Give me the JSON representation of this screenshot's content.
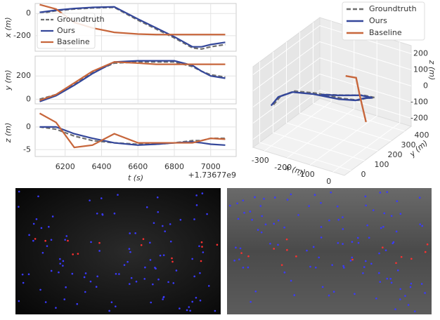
{
  "chart_data": [
    {
      "type": "line",
      "ylabel": "x (m)",
      "xlim": [
        6035,
        7140
      ],
      "xticks": [
        6200,
        6400,
        6600,
        6800,
        7000
      ],
      "ylim": [
        -340,
        90
      ],
      "yticks": [
        -200,
        0
      ],
      "grid": true,
      "legend": "center left",
      "x": [
        6060,
        6150,
        6250,
        6350,
        6470,
        6600,
        6700,
        6800,
        6900,
        6950,
        7000,
        7080
      ],
      "series": [
        {
          "name": "Groundtruth",
          "color": "#6f6f6f",
          "dash": true,
          "values": [
            0,
            25,
            40,
            50,
            55,
            -60,
            -140,
            -220,
            -310,
            -320,
            -300,
            -280
          ]
        },
        {
          "name": "Ours",
          "color": "#34479a",
          "values": [
            10,
            30,
            45,
            55,
            60,
            -50,
            -130,
            -210,
            -300,
            -300,
            -280,
            -260
          ]
        },
        {
          "name": "Baseline",
          "color": "#c7663b",
          "values": [
            80,
            40,
            -80,
            -130,
            -170,
            -185,
            -190,
            -190,
            -190,
            -190,
            -190,
            -190
          ]
        }
      ]
    },
    {
      "type": "line",
      "ylabel": "y (m)",
      "xlim": [
        6035,
        7140
      ],
      "xticks": [
        6200,
        6400,
        6600,
        6800,
        7000
      ],
      "ylim": [
        -40,
        370
      ],
      "yticks": [
        0,
        200
      ],
      "grid": true,
      "x": [
        6060,
        6150,
        6250,
        6350,
        6470,
        6600,
        6700,
        6800,
        6900,
        6950,
        7000,
        7080
      ],
      "series": [
        {
          "color": "#6f6f6f",
          "dash": true,
          "values": [
            0,
            40,
            130,
            230,
            310,
            320,
            320,
            320,
            280,
            240,
            210,
            190
          ]
        },
        {
          "color": "#34479a",
          "values": [
            -20,
            30,
            120,
            220,
            320,
            330,
            330,
            330,
            290,
            240,
            200,
            180
          ]
        },
        {
          "color": "#c7663b",
          "values": [
            -10,
            40,
            140,
            240,
            320,
            310,
            300,
            300,
            300,
            300,
            300,
            300
          ]
        }
      ]
    },
    {
      "type": "line",
      "ylabel": "z (m)",
      "xlabel": "t (s)",
      "x_offset_label": "+1.73677e9",
      "xlim": [
        6035,
        7140
      ],
      "xticks": [
        6200,
        6400,
        6600,
        6800,
        7000
      ],
      "ylim": [
        -6.5,
        4
      ],
      "yticks": [
        -5,
        0
      ],
      "grid": true,
      "x": [
        6060,
        6150,
        6250,
        6350,
        6470,
        6600,
        6700,
        6800,
        6900,
        6950,
        7000,
        7080
      ],
      "series": [
        {
          "color": "#6f6f6f",
          "dash": true,
          "values": [
            0,
            -0.5,
            -2,
            -3,
            -3.5,
            -3.8,
            -3.8,
            -3.5,
            -3,
            -3,
            -2.5,
            -2.5
          ]
        },
        {
          "color": "#34479a",
          "values": [
            0,
            0,
            -1.5,
            -2.5,
            -3.5,
            -4,
            -3.8,
            -3.5,
            -3.3,
            -3.5,
            -3.8,
            -4
          ]
        },
        {
          "color": "#c7663b",
          "values": [
            3,
            1,
            -4.5,
            -4,
            -1.5,
            -3.5,
            -3.5,
            -3.5,
            -3.5,
            -3,
            -2.5,
            -2.7
          ]
        }
      ]
    },
    {
      "type": "line3d",
      "xlabel": "x (m)",
      "ylabel": "y (m)",
      "zlabel": "z (m)",
      "legend": "upper right",
      "xlim": [
        -350,
        50
      ],
      "ylim": [
        -50,
        450
      ],
      "zlim": [
        -250,
        250
      ],
      "xticks": [
        -300,
        -200,
        -100,
        0
      ],
      "yticks": [
        0,
        100,
        200,
        300,
        400
      ],
      "zticks": [
        -200,
        -100,
        0,
        100,
        200
      ],
      "series": [
        {
          "name": "Groundtruth",
          "color": "#6f6f6f",
          "dash": true,
          "x": [
            -290,
            -270,
            -220,
            -140,
            -40,
            10,
            0,
            -10,
            -90,
            -190,
            -270
          ],
          "y": [
            0,
            20,
            40,
            60,
            80,
            120,
            200,
            280,
            330,
            340,
            340
          ],
          "z": [
            10,
            60,
            100,
            110,
            110,
            95,
            55,
            5,
            -45,
            -95,
            -125
          ]
        },
        {
          "name": "Ours",
          "color": "#34479a",
          "x": [
            -300,
            -280,
            -230,
            -150,
            -50,
            0,
            -10,
            -20,
            -100,
            -200,
            -280
          ],
          "y": [
            0,
            20,
            40,
            60,
            80,
            120,
            200,
            280,
            330,
            340,
            340
          ],
          "z": [
            0,
            50,
            90,
            100,
            100,
            90,
            50,
            0,
            -50,
            -100,
            -130
          ]
        },
        {
          "name": "Baseline",
          "color": "#c7663b",
          "x": [
            -120,
            -80,
            -70,
            -60
          ],
          "y": [
            250,
            260,
            270,
            300
          ],
          "z": [
            110,
            110,
            0,
            -180
          ]
        }
      ]
    }
  ]
}
